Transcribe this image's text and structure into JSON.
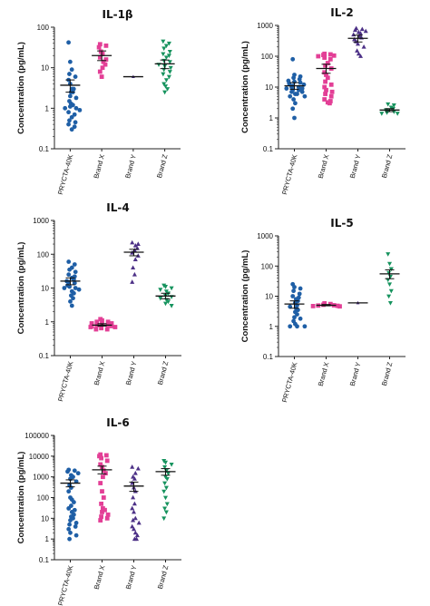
{
  "colors": {
    "PRYCTA-40K": "#1f5fa6",
    "Brand X": "#e33f96",
    "Brand Y": "#4d3187",
    "Brand Z": "#16935e"
  },
  "chart_data": [
    {
      "type": "scatter",
      "title": "IL-1β",
      "xlabel": "",
      "ylabel": "Concentration (pg/mL)",
      "yscale": "log",
      "ylim": [
        0.1,
        100
      ],
      "yticks": [
        "0.1",
        "1",
        "10",
        "100"
      ],
      "categories": [
        "PRYCTA-40K",
        "Brand X",
        "Brand Y",
        "Brand Z"
      ],
      "series": [
        {
          "category": "PRYCTA-40K",
          "marker": "circle",
          "mean": 3.7,
          "sem_low": 2.5,
          "sem_high": 5.0,
          "values": [
            42,
            14,
            9,
            7,
            6,
            5,
            4,
            3,
            3,
            2.5,
            2.5,
            2,
            1.8,
            1.5,
            1.3,
            1.2,
            1.1,
            1,
            1,
            0.9,
            0.8,
            0.7,
            0.6,
            0.5,
            0.45,
            0.4,
            0.35,
            0.3
          ]
        },
        {
          "category": "Brand X",
          "marker": "square",
          "mean": 20,
          "sem_low": 15,
          "sem_high": 26,
          "values": [
            38,
            35,
            32,
            25,
            22,
            18,
            16,
            14,
            12,
            10,
            8,
            6
          ]
        },
        {
          "category": "Brand Y",
          "marker": "triangle-up",
          "mean": 6,
          "sem_low": 6,
          "sem_high": 6,
          "values": [
            6
          ]
        },
        {
          "category": "Brand Z",
          "marker": "triangle-down",
          "mean": 12.5,
          "sem_low": 9.5,
          "sem_high": 15.5,
          "values": [
            45,
            40,
            35,
            30,
            25,
            22,
            20,
            18,
            15,
            14,
            12,
            11,
            10,
            9,
            8,
            7,
            6,
            5,
            4,
            3.5,
            3,
            2.5
          ]
        }
      ]
    },
    {
      "type": "scatter",
      "title": "IL-2",
      "xlabel": "",
      "ylabel": "Concentration (pg/mL)",
      "yscale": "log",
      "ylim": [
        0.1,
        1000
      ],
      "yticks": [
        "0.1",
        "1",
        "10",
        "100",
        "1000"
      ],
      "categories": [
        "PRYCTA-40K",
        "Brand X",
        "Brand Y",
        "Brand Z"
      ],
      "series": [
        {
          "category": "PRYCTA-40K",
          "marker": "circle",
          "mean": 11,
          "sem_low": 8.5,
          "sem_high": 14,
          "values": [
            80,
            25,
            22,
            20,
            18,
            16,
            15,
            14,
            13,
            12,
            11,
            10,
            10,
            9,
            9,
            8,
            8,
            7,
            7,
            6,
            6,
            5,
            5,
            4,
            3,
            2,
            1
          ]
        },
        {
          "category": "Brand X",
          "marker": "square",
          "mean": 40,
          "sem_low": 28,
          "sem_high": 55,
          "values": [
            120,
            115,
            110,
            105,
            100,
            90,
            80,
            60,
            50,
            40,
            30,
            25,
            20,
            15,
            12,
            10,
            8,
            7,
            6,
            5,
            4,
            3.5,
            3.2,
            3
          ]
        },
        {
          "category": "Brand Y",
          "marker": "triangle-up",
          "mean": 380,
          "sem_low": 290,
          "sem_high": 480,
          "values": [
            800,
            750,
            700,
            650,
            600,
            550,
            500,
            450,
            400,
            350,
            300,
            250,
            200,
            150,
            120,
            100
          ]
        },
        {
          "category": "Brand Z",
          "marker": "triangle-down",
          "mean": 1.8,
          "sem_low": 1.6,
          "sem_high": 2.0,
          "values": [
            2.8,
            2.6,
            2.2,
            2.0,
            1.8,
            1.7,
            1.6,
            1.5,
            1.4,
            1.4
          ]
        }
      ]
    },
    {
      "type": "scatter",
      "title": "IL-4",
      "xlabel": "",
      "ylabel": "Concentration (pg/mL)",
      "yscale": "log",
      "ylim": [
        0.1,
        1000
      ],
      "yticks": [
        "0.1",
        "1",
        "10",
        "100",
        "1000"
      ],
      "categories": [
        "PRYCTA-40K",
        "Brand X",
        "Brand Y",
        "Brand Z"
      ],
      "series": [
        {
          "category": "PRYCTA-40K",
          "marker": "circle",
          "mean": 16,
          "sem_low": 12.5,
          "sem_high": 20,
          "values": [
            60,
            50,
            40,
            35,
            30,
            25,
            22,
            20,
            18,
            16,
            15,
            14,
            12,
            11,
            10,
            10,
            9,
            8,
            7,
            6,
            5,
            4,
            3
          ]
        },
        {
          "category": "Brand X",
          "marker": "square",
          "mean": 0.8,
          "sem_low": 0.75,
          "sem_high": 0.88,
          "values": [
            1.2,
            1.1,
            1.0,
            1.0,
            0.9,
            0.9,
            0.85,
            0.8,
            0.8,
            0.75,
            0.75,
            0.7,
            0.7,
            0.65,
            0.6,
            0.6
          ]
        },
        {
          "category": "Brand Y",
          "marker": "triangle-up",
          "mean": 115,
          "sem_low": 90,
          "sem_high": 140,
          "values": [
            220,
            200,
            180,
            150,
            130,
            110,
            90,
            70,
            40,
            25,
            15
          ]
        },
        {
          "category": "Brand Z",
          "marker": "triangle-down",
          "mean": 5.8,
          "sem_low": 4.8,
          "sem_high": 7,
          "values": [
            12,
            11,
            10,
            9,
            8,
            7,
            6,
            5.5,
            5,
            4.5,
            4,
            3.5,
            3
          ]
        }
      ]
    },
    {
      "type": "scatter",
      "title": "IL-5",
      "xlabel": "",
      "ylabel": "Concentration (pg/mL)",
      "yscale": "log",
      "ylim": [
        0.1,
        1000
      ],
      "yticks": [
        "0.1",
        "1",
        "10",
        "100",
        "1000"
      ],
      "categories": [
        "PRYCTA-40K",
        "Brand X",
        "Brand Y",
        "Brand Z"
      ],
      "series": [
        {
          "category": "PRYCTA-40K",
          "marker": "circle",
          "mean": 5.5,
          "sem_low": 4,
          "sem_high": 7,
          "values": [
            25,
            20,
            18,
            15,
            12,
            10,
            9,
            8,
            7,
            6,
            5,
            4.5,
            4,
            3.5,
            3,
            2.5,
            2,
            1.8,
            1.5,
            1.2,
            1,
            1,
            1
          ]
        },
        {
          "category": "Brand X",
          "marker": "square",
          "mean": 5,
          "sem_low": 4.8,
          "sem_high": 5.3,
          "values": [
            5.8,
            5.5,
            5.2,
            5.0,
            4.9,
            4.8,
            4.7,
            4.6
          ]
        },
        {
          "category": "Brand Y",
          "marker": "triangle-up",
          "mean": 6,
          "sem_low": 6,
          "sem_high": 6,
          "values": [
            6
          ]
        },
        {
          "category": "Brand Z",
          "marker": "triangle-down",
          "mean": 55,
          "sem_low": 38,
          "sem_high": 75,
          "values": [
            250,
            120,
            80,
            60,
            45,
            35,
            25,
            15,
            10,
            6
          ]
        }
      ]
    },
    {
      "type": "scatter",
      "title": "IL-6",
      "xlabel": "",
      "ylabel": "Concentration (pg/mL)",
      "yscale": "log",
      "ylim": [
        0.1,
        100000
      ],
      "yticks": [
        "0.1",
        "1",
        "10",
        "100",
        "1000",
        "10000",
        "100000"
      ],
      "categories": [
        "PRYCTA-40K",
        "Brand X",
        "Brand Y",
        "Brand Z"
      ],
      "series": [
        {
          "category": "PRYCTA-40K",
          "marker": "circle",
          "mean": 500,
          "sem_low": 330,
          "sem_high": 720,
          "values": [
            2200,
            2000,
            1800,
            1500,
            1200,
            1000,
            800,
            600,
            400,
            300,
            200,
            100,
            80,
            60,
            40,
            30,
            25,
            20,
            15,
            12,
            10,
            8,
            6,
            5,
            4,
            3,
            2,
            1.5,
            1
          ]
        },
        {
          "category": "Brand X",
          "marker": "square",
          "mean": 2200,
          "sem_low": 1400,
          "sem_high": 3300,
          "values": [
            12000,
            11000,
            10000,
            8000,
            6000,
            4000,
            3000,
            2000,
            1500,
            1000,
            500,
            200,
            100,
            50,
            30,
            25,
            20,
            15,
            12,
            10,
            8
          ]
        },
        {
          "category": "Brand Y",
          "marker": "triangle-up",
          "mean": 360,
          "sem_low": 200,
          "sem_high": 560,
          "values": [
            3000,
            2500,
            1500,
            1000,
            800,
            500,
            300,
            200,
            100,
            50,
            30,
            20,
            10,
            8,
            6,
            4,
            3,
            2,
            1.5,
            1,
            1
          ]
        },
        {
          "category": "Brand Z",
          "marker": "triangle-down",
          "mean": 1800,
          "sem_low": 1200,
          "sem_high": 2500,
          "values": [
            6000,
            5000,
            4000,
            3000,
            2000,
            1500,
            1000,
            800,
            500,
            300,
            200,
            100,
            50,
            30,
            20,
            10
          ]
        }
      ]
    }
  ]
}
